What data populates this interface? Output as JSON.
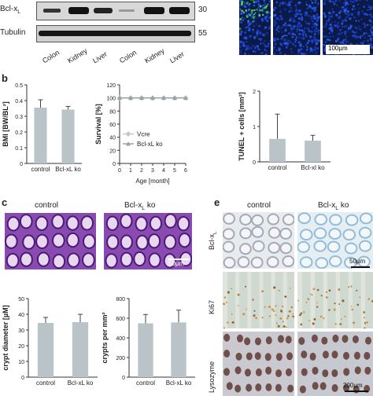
{
  "blot": {
    "bcl_label": "Bcl-x",
    "bcl_sub": "L",
    "tubulin_label": "Tubulin",
    "marker_30": "30",
    "marker_55": "55",
    "lanes": [
      "Colon",
      "Kidney",
      "Liver",
      "Colon",
      "Kidney",
      "Liver"
    ]
  },
  "fluor": {
    "scale": "100µm"
  },
  "panel_b": {
    "letter": "b",
    "bmi_chart": {
      "type": "bar",
      "ylabel": "BMI [BW/BL²]",
      "categories": [
        "control",
        "Bcl-xL ko"
      ],
      "values": [
        0.355,
        0.343
      ],
      "errors": [
        0.05,
        0.02
      ],
      "ylim": [
        0,
        0.5
      ],
      "yticks": [
        "0",
        "0.1",
        "0.2",
        "0.3",
        "0.4",
        "0.5"
      ]
    },
    "survival_chart": {
      "type": "line",
      "ylabel": "Survival [%]",
      "xlabel": "Age [month]",
      "xlim": [
        0,
        6
      ],
      "ylim": [
        0,
        120
      ],
      "xticks": [
        "0",
        "1",
        "2",
        "3",
        "4",
        "5",
        "6"
      ],
      "yticks": [
        "0",
        "20",
        "40",
        "60",
        "80",
        "100",
        "120"
      ],
      "legend": [
        "Vcre",
        "Bcl-xL ko"
      ],
      "series": [
        {
          "name": "Vcre",
          "x": [
            0,
            1,
            2,
            3,
            4,
            5,
            6
          ],
          "y": [
            100,
            100,
            100,
            100,
            100,
            100,
            100
          ]
        },
        {
          "name": "Bcl-xL ko",
          "x": [
            0,
            1,
            2,
            3,
            4,
            5,
            6
          ],
          "y": [
            100,
            100,
            100,
            100,
            100,
            100,
            100
          ]
        }
      ]
    },
    "tunel_chart": {
      "type": "bar",
      "ylabel": "TUNEL + cells [mm²]",
      "categories": [
        "control",
        "Bcl-xl ko"
      ],
      "values": [
        0.65,
        0.6
      ],
      "errors": [
        0.7,
        0.15
      ],
      "ylim": [
        0,
        2
      ],
      "yticks": [
        "0",
        "1",
        "2"
      ]
    }
  },
  "panel_c": {
    "letter": "c",
    "control_title": "control",
    "ko_title_main": "Bcl-x",
    "ko_title_sub": "L",
    "ko_title_tail": " ko",
    "scale": "50µm",
    "crypt_diameter_chart": {
      "type": "bar",
      "ylabel": "crypt diameter [µM]",
      "categories": [
        "control",
        "Bcl-xL ko"
      ],
      "values": [
        34.5,
        35
      ],
      "errors": [
        3.5,
        5
      ],
      "ylim": [
        0,
        50
      ],
      "yticks": [
        "0",
        "10",
        "20",
        "30",
        "40",
        "50"
      ]
    },
    "crypts_chart": {
      "type": "bar",
      "ylabel": "crypts per mm²",
      "categories": [
        "control",
        "Bcl-xL ko"
      ],
      "values": [
        548,
        557
      ],
      "errors": [
        90,
        125
      ],
      "ylim": [
        0,
        800
      ],
      "yticks": [
        "0",
        "200",
        "400",
        "600",
        "800"
      ]
    }
  },
  "panel_e": {
    "letter": "e",
    "control_title": "control",
    "ko_title_main": "Bcl-x",
    "ko_title_sub": "L",
    "ko_title_tail": " ko",
    "row1_main": "Bcl-x",
    "row1_sub": "L",
    "row2": "Ki67",
    "row3": "Lysozyme",
    "scale1": "50µm",
    "scale3": "200µm"
  },
  "colors": {
    "bar": "#b9c3c8",
    "he": "#7a3fa0",
    "fluor_bg": "#0c1c48"
  }
}
